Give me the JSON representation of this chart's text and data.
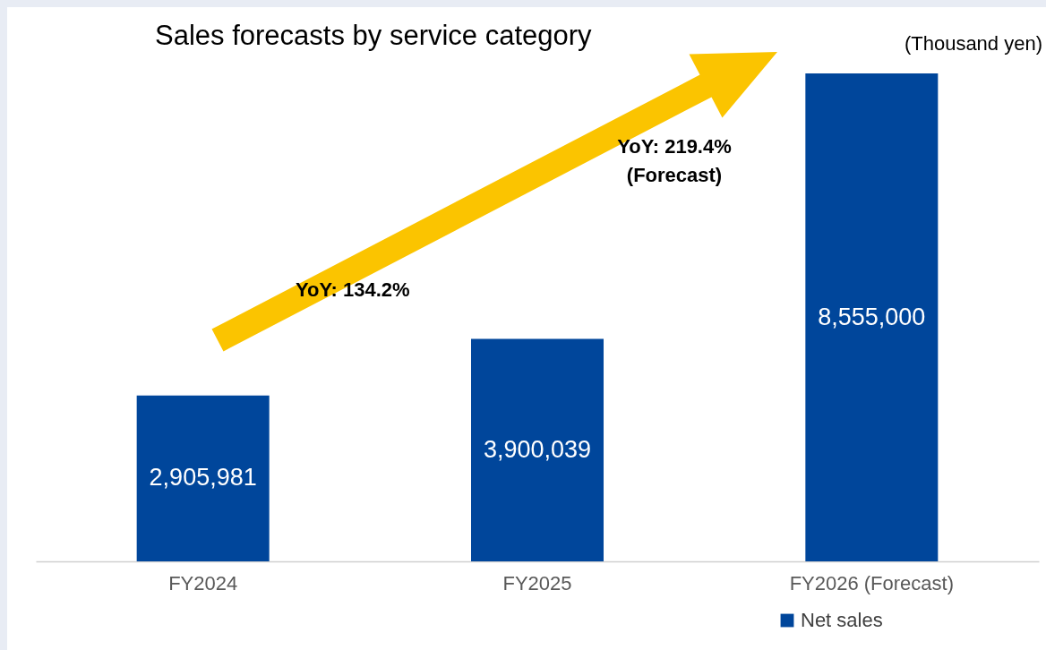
{
  "chart_data": {
    "type": "bar",
    "title": "Sales forecasts by service category",
    "ylabel": "(Thousand yen)",
    "categories": [
      "FY2024",
      "FY2025",
      "FY2026 (Forecast)"
    ],
    "series": [
      {
        "name": "Net sales",
        "color": "#00469b",
        "values": [
          2905981,
          3900039,
          8555000
        ],
        "value_labels": [
          "2,905,981",
          "3,900,039",
          "8,555,000"
        ]
      }
    ],
    "legend": "bottom right",
    "grid": false,
    "annotations": [
      "YoY: 134.2%",
      "YoY: 219.4%\n(Forecast)"
    ]
  }
}
